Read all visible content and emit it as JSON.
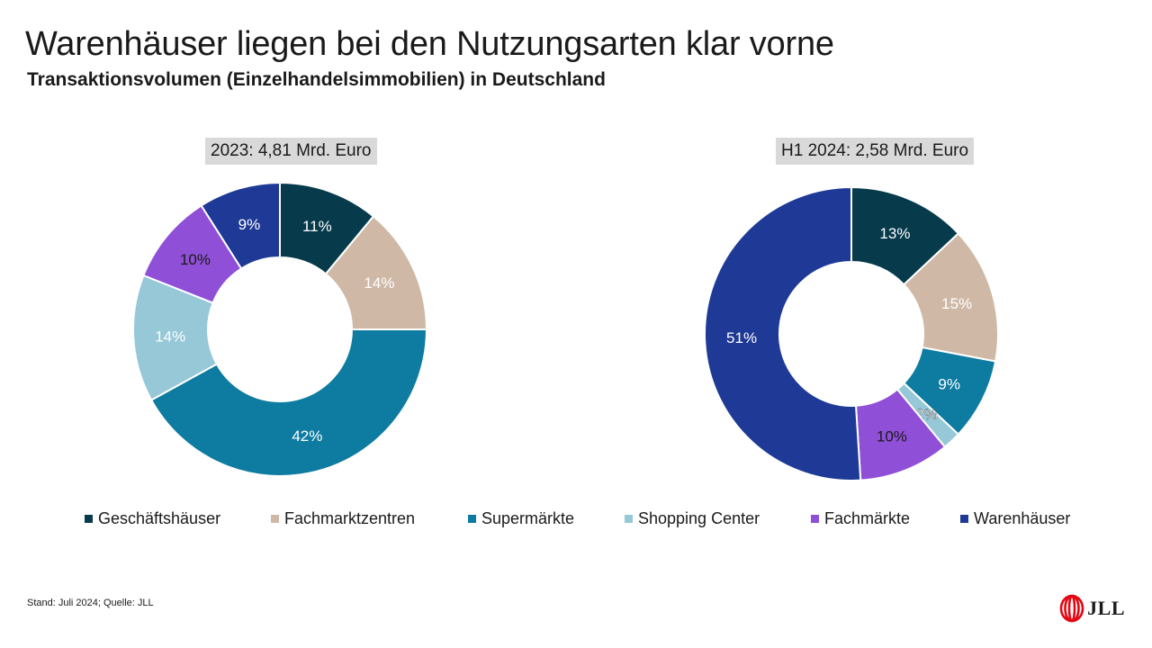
{
  "header": {
    "title": "Warenhäuser liegen bei den Nutzungsarten klar vorne",
    "subtitle": "Transaktionsvolumen (Einzelhandelsimmobilien) in Deutschland"
  },
  "footnote": "Stand: Juli 2024; Quelle: JLL",
  "logo": {
    "text": "JLL",
    "color": "#e30613"
  },
  "chart_data": [
    {
      "type": "pie",
      "title": "2023: 4,81 Mrd. Euro",
      "categories": [
        "Geschäftshäuser",
        "Fachmarktzentren",
        "Supermärkte",
        "Shopping Center",
        "Fachmärkte",
        "Warenhäuser"
      ],
      "values": [
        11,
        14,
        42,
        14,
        10,
        9
      ],
      "labels": [
        "11%",
        "14%",
        "42%",
        "14%",
        "10%",
        "9%"
      ],
      "colors": [
        "#073b4c",
        "#cfb9a6",
        "#0e7ba1",
        "#96c8d8",
        "#8f4fd6",
        "#1e3a96"
      ],
      "donut": true
    },
    {
      "type": "pie",
      "title": "H1 2024: 2,58 Mrd. Euro",
      "categories": [
        "Geschäftshäuser",
        "Fachmarktzentren",
        "Supermärkte",
        "Shopping Center",
        "Fachmärkte",
        "Warenhäuser"
      ],
      "values": [
        13,
        15,
        9,
        2,
        10,
        51
      ],
      "labels": [
        "13%",
        "15%",
        "9%",
        "2%",
        "10%",
        "51%"
      ],
      "colors": [
        "#073b4c",
        "#cfb9a6",
        "#0e7ba1",
        "#96c8d8",
        "#8f4fd6",
        "#1e3a96"
      ],
      "donut": true
    }
  ],
  "legend": {
    "items": [
      {
        "label": "Geschäftshäuser",
        "color": "#073b4c"
      },
      {
        "label": "Fachmarktzentren",
        "color": "#cfb9a6"
      },
      {
        "label": "Supermärkte",
        "color": "#0e7ba1"
      },
      {
        "label": "Shopping Center",
        "color": "#96c8d8"
      },
      {
        "label": "Fachmärkte",
        "color": "#8f4fd6"
      },
      {
        "label": "Warenhäuser",
        "color": "#1e3a96"
      }
    ]
  }
}
